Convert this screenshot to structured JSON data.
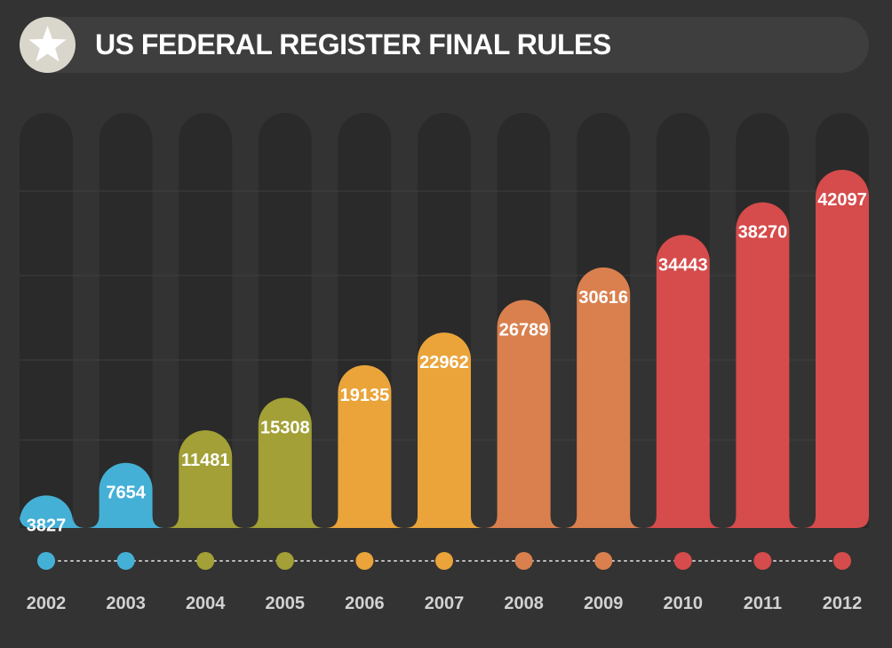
{
  "title": "US FEDERAL REGISTER FINAL RULES",
  "badge_icon": "star-icon",
  "chart_data": {
    "type": "bar",
    "title": "US FEDERAL REGISTER FINAL RULES",
    "categories": [
      "2002",
      "2003",
      "2004",
      "2005",
      "2006",
      "2007",
      "2008",
      "2009",
      "2010",
      "2011",
      "2012"
    ],
    "values": [
      3827,
      7654,
      11481,
      15308,
      19135,
      22962,
      26789,
      30616,
      34443,
      38270,
      42097
    ],
    "data_labels": [
      "3827",
      "7654",
      "11481",
      "15308",
      "19135",
      "22962",
      "26789",
      "30616",
      "34443",
      "38270",
      "42097"
    ],
    "colors": [
      "#45b0d6",
      "#45b0d6",
      "#a2a036",
      "#a2a036",
      "#eaa43a",
      "#eaa43a",
      "#d9804e",
      "#d9804e",
      "#d64b4b",
      "#d64b4b",
      "#d64b4b"
    ],
    "xlabel": "",
    "ylabel": "",
    "grid": true,
    "legend": "none"
  }
}
